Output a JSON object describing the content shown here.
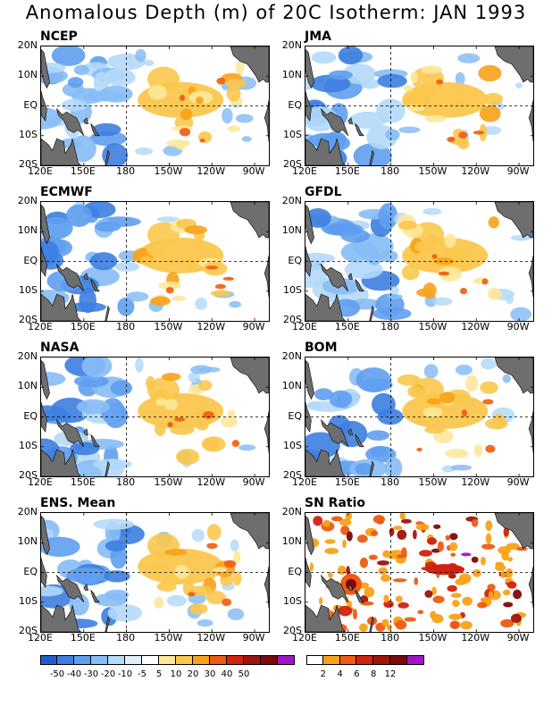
{
  "title": "Anomalous Depth (m) of 20C Isotherm: JAN 1993",
  "y_ticks": [
    "20N",
    "10N",
    "EQ",
    "10S",
    "20S"
  ],
  "x_ticks": [
    "120E",
    "150E",
    "180",
    "150W",
    "120W",
    "90W"
  ],
  "panels": [
    {
      "name": "NCEP"
    },
    {
      "name": "JMA"
    },
    {
      "name": "ECMWF"
    },
    {
      "name": "GFDL"
    },
    {
      "name": "NASA"
    },
    {
      "name": "BOM"
    },
    {
      "name": "ENS. Mean"
    },
    {
      "name": "SN Ratio"
    }
  ],
  "colors": {
    "land": "#6e6e6e",
    "anomaly_scale": [
      "#1f5ed1",
      "#3d7ee0",
      "#5f9ff0",
      "#87bdf5",
      "#b4d9fa",
      "#dff0fc",
      "#ffffff",
      "#fde89a",
      "#fbc64d",
      "#f8a218",
      "#ef5b12",
      "#d1220f",
      "#a0140f",
      "#7a0a0a",
      "#9f16c8"
    ],
    "sn_scale": [
      "#ffffff",
      "#f8a218",
      "#ef5b12",
      "#d1220f",
      "#a0140f",
      "#7a0a0a",
      "#9f16c8"
    ]
  },
  "anomaly_colorbar_labels": [
    "-50",
    "-40",
    "-30",
    "-20",
    "-10",
    "-5",
    "5",
    "10",
    "20",
    "30",
    "40",
    "50"
  ],
  "sn_colorbar_labels": [
    "2",
    "4",
    "6",
    "8",
    "12"
  ],
  "chart_data": {
    "type": "heatmap",
    "title": "Anomalous Depth (m) of 20C Isotherm: JAN 1993",
    "variable": "20C isotherm depth anomaly (m)",
    "lon_range": [
      "120E",
      "80W"
    ],
    "lat_range": [
      "20S",
      "20N"
    ],
    "anomaly_contour_levels": [
      -50,
      -40,
      -30,
      -20,
      -10,
      -5,
      5,
      10,
      20,
      30,
      40,
      50
    ],
    "sn_contour_levels": [
      2,
      4,
      6,
      8,
      12
    ],
    "panels": [
      "NCEP",
      "JMA",
      "ECMWF",
      "GFDL",
      "NASA",
      "BOM",
      "ENS. Mean",
      "SN Ratio"
    ],
    "features": [
      {
        "region": "western Pacific 120E-180",
        "anomaly_m": "-30 to -10"
      },
      {
        "region": "central-eastern Pacific 170W-110W near EQ",
        "anomaly_m": "10 to 20"
      },
      {
        "region": "local maxima east Pacific",
        "anomaly_m": "30 to 40"
      }
    ]
  }
}
